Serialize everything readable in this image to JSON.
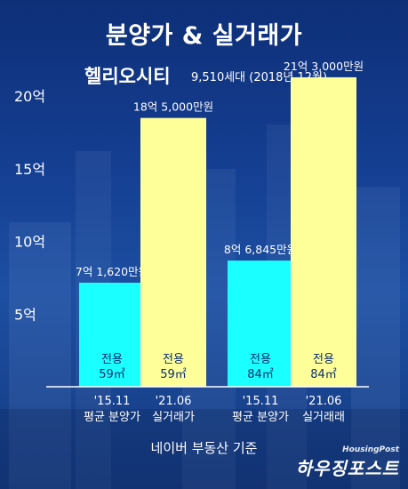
{
  "title": "분양가 & 실거래가",
  "complex": {
    "name": "헬리오시티",
    "info": "9,510세대 (2018년 12월)"
  },
  "source_note": "네이버 부동산 기준",
  "brand": {
    "en": "HousingPost",
    "ko": "하우징포스트"
  },
  "colors": {
    "cyan": "#1affff",
    "yellow": "#ffff99",
    "background": "#153f92",
    "text": "#ffffff",
    "bar_text": "#0b2f6e"
  },
  "chart_data": {
    "type": "bar",
    "ylim": [
      0,
      20.5
    ],
    "yunit": "억",
    "ticks": [
      {
        "value": 5,
        "label": "5억"
      },
      {
        "value": 10,
        "label": "10억"
      },
      {
        "value": 15,
        "label": "15억"
      },
      {
        "value": 20,
        "label": "20억"
      }
    ],
    "bars": [
      {
        "value": 7.162,
        "value_label": "7억 1,620만원",
        "inner_label_1": "전용",
        "inner_label_2": "59㎡",
        "cat_line1": "'15.11",
        "cat_line2": "평균 분양가",
        "color": "#1affff"
      },
      {
        "value": 18.5,
        "value_label": "18억 5,000만원",
        "inner_label_1": "전용",
        "inner_label_2": "59㎡",
        "cat_line1": "'21.06",
        "cat_line2": "실거래가",
        "color": "#ffff99"
      },
      {
        "value": 8.6845,
        "value_label": "8억 6,845만원",
        "inner_label_1": "전용",
        "inner_label_2": "84㎡",
        "cat_line1": "'15.11",
        "cat_line2": "평균 분양가",
        "color": "#1affff"
      },
      {
        "value": 21.3,
        "value_label": "21억 3,000만원",
        "inner_label_1": "전용",
        "inner_label_2": "84㎡",
        "cat_line1": "'21.06",
        "cat_line2": "실거래래",
        "color": "#ffff99"
      }
    ]
  }
}
